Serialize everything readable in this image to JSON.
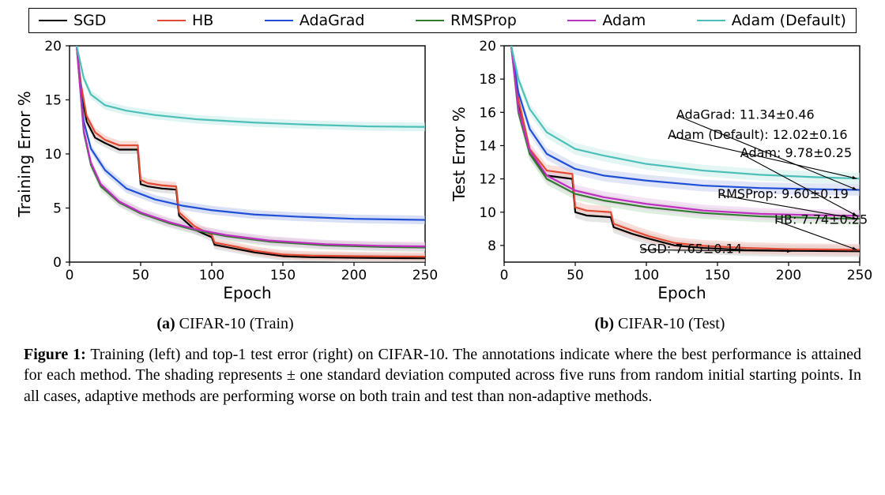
{
  "legend": {
    "items": [
      {
        "label": "SGD",
        "color": "#000000"
      },
      {
        "label": "HB",
        "color": "#e24a33"
      },
      {
        "label": "AdaGrad",
        "color": "#1f4fd6"
      },
      {
        "label": "RMSProp",
        "color": "#2e7d2e"
      },
      {
        "label": "Adam",
        "color": "#c030c0"
      },
      {
        "label": "Adam (Default)",
        "color": "#4cc0b8"
      }
    ]
  },
  "chart_a": {
    "type": "line",
    "title": "",
    "sub_label": "(a)",
    "sub_text": "CIFAR-10 (Train)",
    "xlabel": "Epoch",
    "ylabel": "Training Error %",
    "xlim": [
      0,
      250
    ],
    "ylim": [
      0,
      20
    ],
    "xticks": [
      0,
      50,
      100,
      150,
      200,
      250
    ],
    "yticks": [
      0,
      5,
      10,
      15,
      20
    ],
    "label_fontsize": 20,
    "tick_fontsize": 17,
    "background_color": "#ffffff",
    "axis_color": "#000000",
    "series": [
      {
        "name": "SGD",
        "color": "#000000",
        "band": "#cccccc",
        "points": [
          [
            5,
            20
          ],
          [
            8,
            16
          ],
          [
            12,
            13
          ],
          [
            18,
            11.5
          ],
          [
            25,
            11
          ],
          [
            35,
            10.4
          ],
          [
            48,
            10.4
          ],
          [
            50,
            7.2
          ],
          [
            55,
            7
          ],
          [
            65,
            6.8
          ],
          [
            75,
            6.7
          ],
          [
            77,
            4.3
          ],
          [
            88,
            3.0
          ],
          [
            100,
            2.3
          ],
          [
            102,
            1.6
          ],
          [
            118,
            1.2
          ],
          [
            130,
            0.9
          ],
          [
            150,
            0.55
          ],
          [
            170,
            0.45
          ],
          [
            200,
            0.4
          ],
          [
            250,
            0.35
          ]
        ]
      },
      {
        "name": "HB",
        "color": "#e24a33",
        "band": "#f4c0b8",
        "points": [
          [
            5,
            20
          ],
          [
            8,
            16.5
          ],
          [
            12,
            13.5
          ],
          [
            18,
            12
          ],
          [
            25,
            11.3
          ],
          [
            35,
            10.8
          ],
          [
            48,
            10.8
          ],
          [
            50,
            7.6
          ],
          [
            55,
            7.3
          ],
          [
            65,
            7.1
          ],
          [
            75,
            7.0
          ],
          [
            77,
            4.6
          ],
          [
            88,
            3.3
          ],
          [
            100,
            2.5
          ],
          [
            102,
            1.8
          ],
          [
            118,
            1.4
          ],
          [
            130,
            1.05
          ],
          [
            150,
            0.7
          ],
          [
            170,
            0.6
          ],
          [
            200,
            0.55
          ],
          [
            250,
            0.5
          ]
        ]
      },
      {
        "name": "AdaGrad",
        "color": "#1f4fd6",
        "band": "#bac7ef",
        "points": [
          [
            5,
            20
          ],
          [
            10,
            13
          ],
          [
            15,
            10.5
          ],
          [
            25,
            8.5
          ],
          [
            40,
            6.8
          ],
          [
            60,
            5.8
          ],
          [
            80,
            5.2
          ],
          [
            100,
            4.8
          ],
          [
            130,
            4.4
          ],
          [
            160,
            4.2
          ],
          [
            200,
            4.0
          ],
          [
            250,
            3.9
          ]
        ]
      },
      {
        "name": "RMSProp",
        "color": "#2e7d2e",
        "band": "#bfe0bf",
        "points": [
          [
            5,
            20
          ],
          [
            10,
            12
          ],
          [
            15,
            9
          ],
          [
            22,
            7
          ],
          [
            35,
            5.5
          ],
          [
            50,
            4.5
          ],
          [
            70,
            3.6
          ],
          [
            90,
            2.9
          ],
          [
            110,
            2.4
          ],
          [
            140,
            1.9
          ],
          [
            180,
            1.55
          ],
          [
            220,
            1.4
          ],
          [
            250,
            1.35
          ]
        ]
      },
      {
        "name": "Adam",
        "color": "#c030c0",
        "band": "#e8c0e8",
        "points": [
          [
            5,
            20
          ],
          [
            10,
            12.2
          ],
          [
            15,
            9.2
          ],
          [
            22,
            7.2
          ],
          [
            35,
            5.6
          ],
          [
            50,
            4.6
          ],
          [
            70,
            3.7
          ],
          [
            90,
            3.0
          ],
          [
            110,
            2.5
          ],
          [
            140,
            2.0
          ],
          [
            180,
            1.65
          ],
          [
            220,
            1.5
          ],
          [
            250,
            1.45
          ]
        ]
      },
      {
        "name": "Adam (Default)",
        "color": "#4cc0b8",
        "band": "#c5ece9",
        "points": [
          [
            5,
            20
          ],
          [
            10,
            17
          ],
          [
            15,
            15.5
          ],
          [
            25,
            14.5
          ],
          [
            40,
            14.0
          ],
          [
            60,
            13.6
          ],
          [
            90,
            13.2
          ],
          [
            130,
            12.9
          ],
          [
            170,
            12.7
          ],
          [
            210,
            12.55
          ],
          [
            250,
            12.5
          ]
        ]
      }
    ]
  },
  "chart_b": {
    "type": "line",
    "title": "",
    "sub_label": "(b)",
    "sub_text": "CIFAR-10 (Test)",
    "xlabel": "Epoch",
    "ylabel": "Test Error %",
    "xlim": [
      0,
      250
    ],
    "ylim": [
      7,
      20
    ],
    "xticks": [
      0,
      50,
      100,
      150,
      200,
      250
    ],
    "yticks": [
      8,
      10,
      12,
      14,
      16,
      18,
      20
    ],
    "label_fontsize": 20,
    "tick_fontsize": 17,
    "background_color": "#ffffff",
    "axis_color": "#000000",
    "series": [
      {
        "name": "SGD",
        "color": "#000000",
        "band": "#cfcfcf",
        "points": [
          [
            5,
            20
          ],
          [
            10,
            16.5
          ],
          [
            18,
            13.5
          ],
          [
            30,
            12.2
          ],
          [
            48,
            12.0
          ],
          [
            50,
            10.0
          ],
          [
            58,
            9.8
          ],
          [
            75,
            9.7
          ],
          [
            77,
            9.1
          ],
          [
            90,
            8.7
          ],
          [
            102,
            8.4
          ],
          [
            120,
            8.0
          ],
          [
            140,
            7.85
          ],
          [
            170,
            7.72
          ],
          [
            200,
            7.68
          ],
          [
            250,
            7.65
          ]
        ]
      },
      {
        "name": "HB",
        "color": "#e24a33",
        "band": "#f3c4bd",
        "points": [
          [
            5,
            20
          ],
          [
            10,
            16.8
          ],
          [
            18,
            13.8
          ],
          [
            30,
            12.5
          ],
          [
            48,
            12.3
          ],
          [
            50,
            10.3
          ],
          [
            58,
            10.1
          ],
          [
            75,
            10.0
          ],
          [
            77,
            9.3
          ],
          [
            90,
            8.9
          ],
          [
            102,
            8.55
          ],
          [
            120,
            8.15
          ],
          [
            140,
            7.98
          ],
          [
            170,
            7.85
          ],
          [
            200,
            7.78
          ],
          [
            250,
            7.74
          ]
        ]
      },
      {
        "name": "AdaGrad",
        "color": "#1f4fd6",
        "band": "#c6d1f3",
        "points": [
          [
            5,
            20
          ],
          [
            10,
            17.2
          ],
          [
            18,
            15
          ],
          [
            30,
            13.5
          ],
          [
            50,
            12.6
          ],
          [
            70,
            12.2
          ],
          [
            100,
            11.9
          ],
          [
            140,
            11.6
          ],
          [
            180,
            11.45
          ],
          [
            220,
            11.38
          ],
          [
            250,
            11.34
          ]
        ]
      },
      {
        "name": "RMSProp",
        "color": "#2e7d2e",
        "band": "#c5e2c5",
        "points": [
          [
            5,
            20
          ],
          [
            10,
            16
          ],
          [
            18,
            13.5
          ],
          [
            30,
            12
          ],
          [
            50,
            11.1
          ],
          [
            70,
            10.7
          ],
          [
            100,
            10.3
          ],
          [
            140,
            9.95
          ],
          [
            180,
            9.75
          ],
          [
            220,
            9.65
          ],
          [
            250,
            9.6
          ]
        ]
      },
      {
        "name": "Adam",
        "color": "#c030c0",
        "band": "#ecc9ec",
        "points": [
          [
            5,
            20
          ],
          [
            10,
            16.2
          ],
          [
            18,
            13.7
          ],
          [
            30,
            12.2
          ],
          [
            50,
            11.3
          ],
          [
            70,
            10.9
          ],
          [
            100,
            10.5
          ],
          [
            140,
            10.1
          ],
          [
            180,
            9.9
          ],
          [
            220,
            9.82
          ],
          [
            250,
            9.78
          ]
        ]
      },
      {
        "name": "Adam (Default)",
        "color": "#4cc0b8",
        "band": "#cdeeeb",
        "points": [
          [
            5,
            20
          ],
          [
            10,
            18
          ],
          [
            18,
            16.2
          ],
          [
            30,
            14.8
          ],
          [
            50,
            13.8
          ],
          [
            70,
            13.4
          ],
          [
            100,
            12.9
          ],
          [
            140,
            12.5
          ],
          [
            180,
            12.25
          ],
          [
            220,
            12.1
          ],
          [
            250,
            12.02
          ]
        ]
      }
    ],
    "annotations": [
      {
        "text": "AdaGrad: 11.34±0.46",
        "tx": 121,
        "ty": 15.6,
        "ax": 248,
        "ay": 11.34
      },
      {
        "text": "Adam (Default): 12.02±0.16",
        "tx": 115,
        "ty": 14.4,
        "ax": 248,
        "ay": 12.02
      },
      {
        "text": "Adam: 9.78±0.25",
        "tx": 166,
        "ty": 13.3,
        "ax": 248,
        "ay": 9.78
      },
      {
        "text": "RMSProp: 9.60±0.19",
        "tx": 150,
        "ty": 10.85,
        "ax": 248,
        "ay": 9.6
      },
      {
        "text": "HB: 7.74±0.25",
        "tx": 190,
        "ty": 9.3,
        "ax": 248,
        "ay": 7.74
      },
      {
        "text": "SGD: 7.65±0.14",
        "tx": 95,
        "ty": 7.55,
        "ax": 202,
        "ay": 7.65
      }
    ],
    "annotation_fontsize": 16,
    "annotation_color": "#000000"
  },
  "caption": {
    "fignum": "Figure 1:",
    "text": "Training (left) and top-1 test error (right) on CIFAR-10. The annotations indicate where the best performance is attained for each method. The shading represents ± one standard deviation computed across five runs from random initial starting points. In all cases, adaptive methods are performing worse on both train and test than non-adaptive methods."
  }
}
